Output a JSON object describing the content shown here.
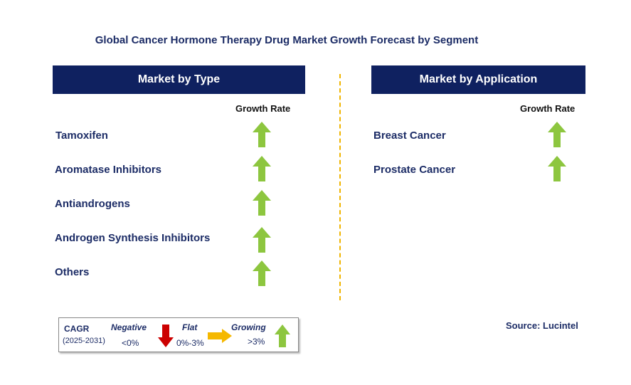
{
  "title": "Global Cancer Hormone Therapy Drug Market Growth Forecast by Segment",
  "left_panel": {
    "header": "Market by Type",
    "growth_header": "Growth Rate",
    "items": [
      {
        "label": "Tamoxifen",
        "trend": "growing"
      },
      {
        "label": "Aromatase Inhibitors",
        "trend": "growing"
      },
      {
        "label": "Antiandrogens",
        "trend": "growing"
      },
      {
        "label": "Androgen Synthesis Inhibitors",
        "trend": "growing"
      },
      {
        "label": "Others",
        "trend": "growing"
      }
    ]
  },
  "right_panel": {
    "header": "Market by Application",
    "growth_header": "Growth Rate",
    "items": [
      {
        "label": "Breast Cancer",
        "trend": "growing"
      },
      {
        "label": "Prostate Cancer",
        "trend": "growing"
      }
    ]
  },
  "legend": {
    "cagr_label": "CAGR",
    "period": "(2025-2031)",
    "negative_label": "Negative",
    "negative_range": "<0%",
    "flat_label": "Flat",
    "flat_range": "0%-3%",
    "growing_label": "Growing",
    "growing_range": ">3%"
  },
  "colors": {
    "header_bg": "#0f2160",
    "growing_arrow": "#8dc63f",
    "negative_arrow": "#cc0000",
    "flat_arrow": "#f5b800",
    "divider": "#f0b400"
  },
  "source": "Source: Lucintel"
}
